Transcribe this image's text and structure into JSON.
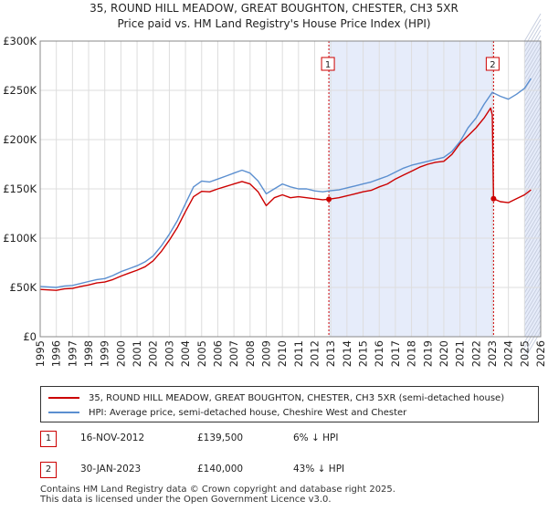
{
  "title_line1": "35, ROUND HILL MEADOW, GREAT BOUGHTON, CHESTER, CH3 5XR",
  "title_line2": "Price paid vs. HM Land Registry's House Price Index (HPI)",
  "legend": {
    "property_label": "35, ROUND HILL MEADOW, GREAT BOUGHTON, CHESTER, CH3 5XR (semi-detached house)",
    "hpi_label": "HPI: Average price, semi-detached house, Cheshire West and Chester",
    "property_color": "#cc0000",
    "hpi_color": "#5b8fd0"
  },
  "transactions": [
    {
      "num": "1",
      "date": "16-NOV-2012",
      "price": "£139,500",
      "hpi": "6% ↓ HPI"
    },
    {
      "num": "2",
      "date": "30-JAN-2023",
      "price": "£140,000",
      "hpi": "43% ↓ HPI"
    }
  ],
  "footer_line1": "Contains HM Land Registry data © Crown copyright and database right 2025.",
  "footer_line2": "This data is licensed under the Open Government Licence v3.0.",
  "chart_data": {
    "type": "line",
    "x_range": [
      1995,
      2026
    ],
    "ylim": [
      0,
      300000
    ],
    "y_ticks": [
      {
        "value": 0,
        "label": "£0"
      },
      {
        "value": 50000,
        "label": "£50K"
      },
      {
        "value": 100000,
        "label": "£100K"
      },
      {
        "value": 150000,
        "label": "£150K"
      },
      {
        "value": 200000,
        "label": "£200K"
      },
      {
        "value": 250000,
        "label": "£250K"
      },
      {
        "value": 300000,
        "label": "£300K"
      }
    ],
    "x_ticks": [
      "1995",
      "1996",
      "1997",
      "1998",
      "1999",
      "2000",
      "2001",
      "2002",
      "2003",
      "2004",
      "2005",
      "2006",
      "2007",
      "2008",
      "2009",
      "2010",
      "2011",
      "2012",
      "2013",
      "2014",
      "2015",
      "2016",
      "2017",
      "2018",
      "2019",
      "2020",
      "2021",
      "2022",
      "2023",
      "2024",
      "2025",
      "2026"
    ],
    "grid": true,
    "shaded_periods": [
      [
        2012.88,
        2023.08
      ],
      [
        2025.0,
        2026.0
      ]
    ],
    "markers": [
      {
        "label": "1",
        "x": 2012.88,
        "y": 139500
      },
      {
        "label": "2",
        "x": 2023.08,
        "y": 140000
      }
    ],
    "series": [
      {
        "name": "HPI: Average price, semi-detached house, Cheshire West and Chester",
        "color": "#5b8fd0",
        "points": [
          [
            1995.0,
            51000
          ],
          [
            1995.5,
            50500
          ],
          [
            1996.0,
            50000
          ],
          [
            1996.5,
            51500
          ],
          [
            1997.0,
            52000
          ],
          [
            1997.5,
            54000
          ],
          [
            1998.0,
            56000
          ],
          [
            1998.5,
            58000
          ],
          [
            1999.0,
            59000
          ],
          [
            1999.5,
            62000
          ],
          [
            2000.0,
            66000
          ],
          [
            2000.5,
            69000
          ],
          [
            2001.0,
            72000
          ],
          [
            2001.5,
            76000
          ],
          [
            2002.0,
            82000
          ],
          [
            2002.5,
            92000
          ],
          [
            2003.0,
            104000
          ],
          [
            2003.5,
            118000
          ],
          [
            2004.0,
            135000
          ],
          [
            2004.5,
            152000
          ],
          [
            2005.0,
            158000
          ],
          [
            2005.5,
            157000
          ],
          [
            2006.0,
            160000
          ],
          [
            2006.5,
            163000
          ],
          [
            2007.0,
            166000
          ],
          [
            2007.5,
            169000
          ],
          [
            2008.0,
            166000
          ],
          [
            2008.5,
            158000
          ],
          [
            2009.0,
            145000
          ],
          [
            2009.5,
            150000
          ],
          [
            2010.0,
            155000
          ],
          [
            2010.5,
            152000
          ],
          [
            2011.0,
            150000
          ],
          [
            2011.5,
            150000
          ],
          [
            2012.0,
            148000
          ],
          [
            2012.5,
            147000
          ],
          [
            2012.88,
            148000
          ],
          [
            2013.5,
            149000
          ],
          [
            2014.0,
            151000
          ],
          [
            2014.5,
            153000
          ],
          [
            2015.0,
            155000
          ],
          [
            2015.5,
            157000
          ],
          [
            2016.0,
            160000
          ],
          [
            2016.5,
            163000
          ],
          [
            2017.0,
            167000
          ],
          [
            2017.5,
            171000
          ],
          [
            2018.0,
            174000
          ],
          [
            2018.5,
            176000
          ],
          [
            2019.0,
            178000
          ],
          [
            2019.5,
            180000
          ],
          [
            2020.0,
            182000
          ],
          [
            2020.5,
            188000
          ],
          [
            2021.0,
            198000
          ],
          [
            2021.5,
            212000
          ],
          [
            2022.0,
            222000
          ],
          [
            2022.5,
            236000
          ],
          [
            2023.0,
            248000
          ],
          [
            2023.5,
            244000
          ],
          [
            2024.0,
            241000
          ],
          [
            2024.5,
            246000
          ],
          [
            2025.0,
            252000
          ],
          [
            2025.4,
            262000
          ]
        ]
      },
      {
        "name": "35, ROUND HILL MEADOW, GREAT BOUGHTON, CHESTER, CH3 5XR (semi-detached house)",
        "color": "#cc0000",
        "points": [
          [
            1995.0,
            48000
          ],
          [
            1995.5,
            47500
          ],
          [
            1996.0,
            47000
          ],
          [
            1996.5,
            48500
          ],
          [
            1997.0,
            49000
          ],
          [
            1997.5,
            51000
          ],
          [
            1998.0,
            52500
          ],
          [
            1998.5,
            54500
          ],
          [
            1999.0,
            55500
          ],
          [
            1999.5,
            58000
          ],
          [
            2000.0,
            61500
          ],
          [
            2000.5,
            64500
          ],
          [
            2001.0,
            67500
          ],
          [
            2001.5,
            71000
          ],
          [
            2002.0,
            77000
          ],
          [
            2002.5,
            86500
          ],
          [
            2003.0,
            98000
          ],
          [
            2003.5,
            111000
          ],
          [
            2004.0,
            127000
          ],
          [
            2004.5,
            142000
          ],
          [
            2005.0,
            147500
          ],
          [
            2005.5,
            147000
          ],
          [
            2006.0,
            150000
          ],
          [
            2006.5,
            152500
          ],
          [
            2007.0,
            155000
          ],
          [
            2007.5,
            157500
          ],
          [
            2008.0,
            155000
          ],
          [
            2008.5,
            147000
          ],
          [
            2009.0,
            133000
          ],
          [
            2009.5,
            141000
          ],
          [
            2010.0,
            144000
          ],
          [
            2010.5,
            141000
          ],
          [
            2011.0,
            142000
          ],
          [
            2011.5,
            141000
          ],
          [
            2012.0,
            140000
          ],
          [
            2012.5,
            139000
          ],
          [
            2012.88,
            139500
          ],
          [
            2013.5,
            141000
          ],
          [
            2014.0,
            143000
          ],
          [
            2014.5,
            145000
          ],
          [
            2015.0,
            147000
          ],
          [
            2015.5,
            148500
          ],
          [
            2016.0,
            152000
          ],
          [
            2016.5,
            155000
          ],
          [
            2017.0,
            160000
          ],
          [
            2017.5,
            164000
          ],
          [
            2018.0,
            168000
          ],
          [
            2018.5,
            172000
          ],
          [
            2019.0,
            175000
          ],
          [
            2019.5,
            177000
          ],
          [
            2020.0,
            178000
          ],
          [
            2020.5,
            185000
          ],
          [
            2021.0,
            196000
          ],
          [
            2021.5,
            204000
          ],
          [
            2022.0,
            212000
          ],
          [
            2022.5,
            222000
          ],
          [
            2022.9,
            232000
          ],
          [
            2023.0,
            225000
          ],
          [
            2023.08,
            140000
          ],
          [
            2023.5,
            137000
          ],
          [
            2024.0,
            136000
          ],
          [
            2024.5,
            140000
          ],
          [
            2025.0,
            144000
          ],
          [
            2025.4,
            149000
          ]
        ]
      }
    ]
  }
}
